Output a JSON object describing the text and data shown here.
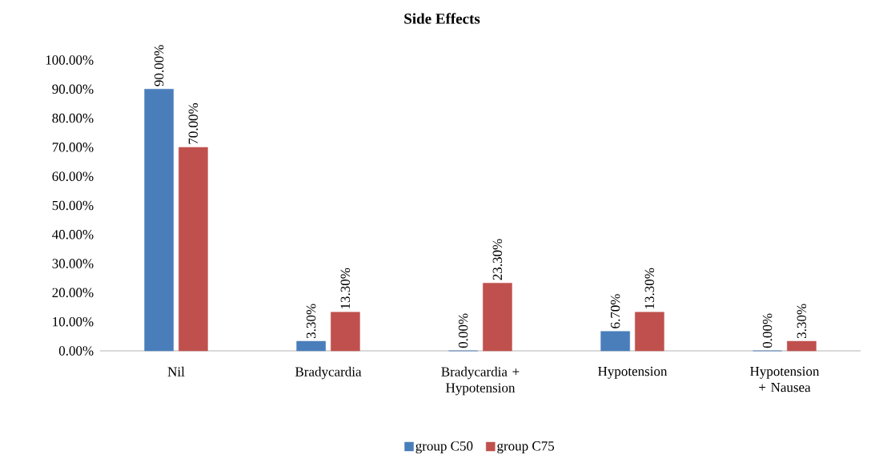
{
  "chart_data": {
    "type": "bar",
    "title": "Side Effects",
    "categories": [
      "Nil",
      "Bradycardia",
      "Bradycardia + Hypotension",
      "Hypotension",
      "Hypotension + Nausea"
    ],
    "series": [
      {
        "name": "group C50",
        "color": "#4a7ebb",
        "values": [
          90,
          3.3,
          0,
          6.7,
          0
        ],
        "value_labels": [
          "90.00%",
          "3.30%",
          "0.00%",
          "6.70%",
          "0.00%"
        ]
      },
      {
        "name": "group C75",
        "color": "#c0504d",
        "values": [
          70,
          13.3,
          23.3,
          13.3,
          3.3
        ],
        "value_labels": [
          "70.00%",
          "13.30%",
          "23.30%",
          "13.30%",
          "3.30%"
        ]
      }
    ],
    "ylim": [
      0,
      100
    ],
    "yticks": [
      {
        "value": 0,
        "label": "0.00%"
      },
      {
        "value": 10,
        "label": "10.00%"
      },
      {
        "value": 20,
        "label": "20.00%"
      },
      {
        "value": 30,
        "label": "30.00%"
      },
      {
        "value": 40,
        "label": "40.00%"
      },
      {
        "value": 50,
        "label": "50.00%"
      },
      {
        "value": 60,
        "label": "60.00%"
      },
      {
        "value": 70,
        "label": "70.00%"
      },
      {
        "value": 80,
        "label": "80.00%"
      },
      {
        "value": 90,
        "label": "90.00%"
      },
      {
        "value": 100,
        "label": "100.00%"
      }
    ],
    "legend": "bottom",
    "grid": false
  }
}
